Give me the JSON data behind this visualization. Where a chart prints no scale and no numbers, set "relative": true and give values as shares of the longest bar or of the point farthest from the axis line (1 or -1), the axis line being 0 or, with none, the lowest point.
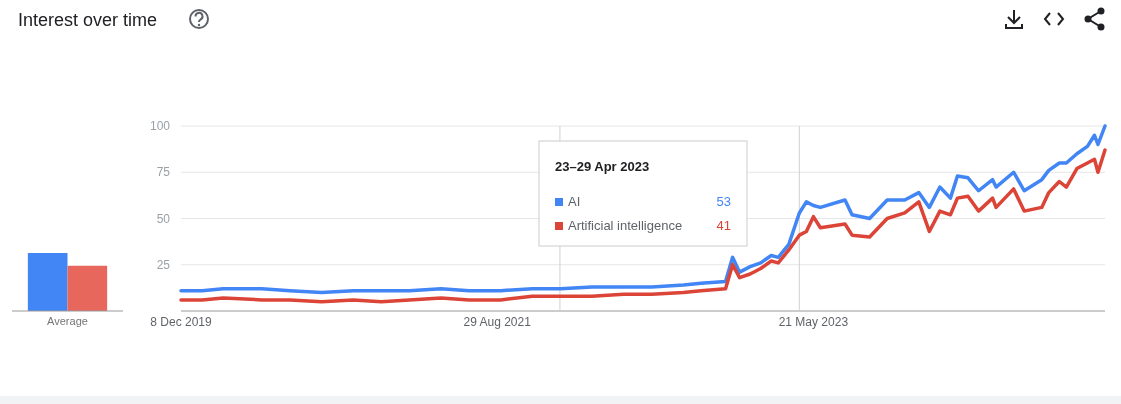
{
  "chart_data": [
    {
      "type": "line",
      "title": "Interest over time",
      "x": [
        "2019-12-08",
        "2020-01-19",
        "2020-03-01",
        "2020-05-17",
        "2020-07-12",
        "2020-09-13",
        "2020-11-15",
        "2021-01-10",
        "2021-03-07",
        "2021-05-09",
        "2021-07-04",
        "2021-09-05",
        "2021-11-07",
        "2022-01-02",
        "2022-03-06",
        "2022-05-08",
        "2022-07-03",
        "2022-09-04",
        "2022-10-09",
        "2022-11-27",
        "2022-12-11",
        "2022-12-25",
        "2023-01-15",
        "2023-02-05",
        "2023-02-26",
        "2023-03-12",
        "2023-04-02",
        "2023-04-23",
        "2023-05-07",
        "2023-05-21",
        "2023-06-04",
        "2023-07-23",
        "2023-08-06",
        "2023-09-10",
        "2023-10-15",
        "2023-11-19",
        "2023-12-17",
        "2024-01-07",
        "2024-01-28",
        "2024-02-18",
        "2024-03-03",
        "2024-03-24",
        "2024-04-14",
        "2024-05-12",
        "2024-05-19",
        "2024-06-23",
        "2024-07-14",
        "2024-08-18",
        "2024-09-01",
        "2024-09-22",
        "2024-10-06",
        "2024-10-27",
        "2024-11-17",
        "2024-12-01",
        "2024-12-08",
        "2024-12-22"
      ],
      "series": [
        {
          "name": "AI",
          "color": "#4285f4",
          "values": [
            11,
            11,
            12,
            12,
            11,
            10,
            11,
            11,
            11,
            12,
            11,
            11,
            12,
            12,
            13,
            13,
            13,
            14,
            15,
            16,
            29,
            21,
            24,
            26,
            30,
            29,
            36,
            53,
            59,
            57,
            56,
            60,
            52,
            50,
            60,
            60,
            64,
            56,
            67,
            61,
            73,
            72,
            65,
            71,
            67,
            75,
            65,
            71,
            76,
            80,
            80,
            85,
            89,
            95,
            90,
            100
          ]
        },
        {
          "name": "Artificial intelligence",
          "color": "#db4437",
          "values": [
            6,
            6,
            7,
            6,
            6,
            5,
            6,
            5,
            6,
            7,
            6,
            6,
            8,
            8,
            8,
            9,
            9,
            10,
            11,
            12,
            25,
            18,
            20,
            23,
            27,
            26,
            33,
            41,
            43,
            51,
            45,
            47,
            41,
            40,
            50,
            53,
            59,
            43,
            54,
            52,
            61,
            62,
            54,
            61,
            56,
            66,
            54,
            56,
            64,
            70,
            67,
            77,
            80,
            82,
            75,
            87
          ]
        }
      ],
      "xlim": [
        "2019-12-08",
        "2024-12-22"
      ],
      "xticks": [
        {
          "value": "2019-12-08",
          "label": "8 Dec 2019"
        },
        {
          "value": "2021-08-29",
          "label": "29 Aug 2021"
        },
        {
          "value": "2023-05-21",
          "label": "21 May 2023"
        }
      ],
      "ylim": [
        0,
        100
      ],
      "yticks": [
        25,
        50,
        75,
        100
      ],
      "grid": "y",
      "ref_lines": [
        {
          "axis": "x",
          "value": "2022-01-01"
        },
        {
          "axis": "x",
          "value": "2023-04-23"
        }
      ],
      "legend": "top",
      "legend_title": "23–29 Apr 2023",
      "annotations": [
        "53",
        "41"
      ]
    },
    {
      "type": "bar",
      "relative": true,
      "categories": [
        "Average"
      ],
      "series": [
        {
          "color": "#4285f4",
          "values": [
            1
          ]
        },
        {
          "color": "#e8675d",
          "values": [
            0.78
          ]
        }
      ]
    }
  ]
}
